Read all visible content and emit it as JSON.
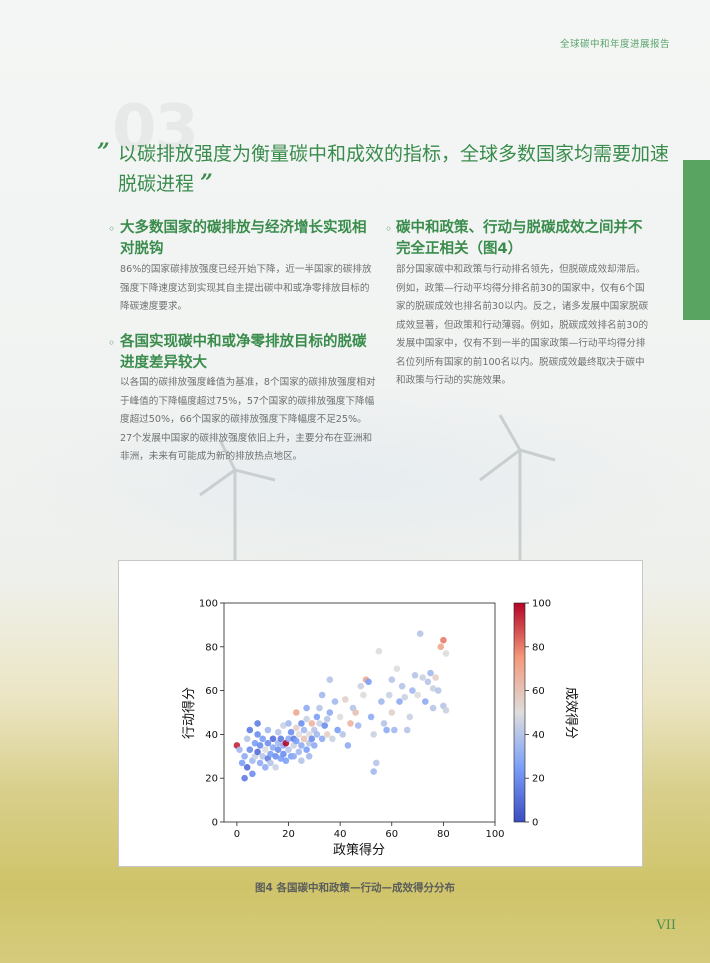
{
  "header": {
    "report_title": "全球碳中和年度进展报告"
  },
  "section": {
    "number": "03",
    "quote_open": "”",
    "quote_close": "”",
    "bullet": "◦",
    "headline": "以碳排放强度为衡量碳中和成效的指标，全球多数国家均需要加速脱碳进程"
  },
  "subsections": [
    {
      "title": "大多数国家的碳排放与经济增长实现相对脱钩",
      "body": "86%的国家碳排放强度已经开始下降，近一半国家的碳排放强度下降速度达到实现其自主提出碳中和或净零排放目标的降碳速度要求。"
    },
    {
      "title": "各国实现碳中和或净零排放目标的脱碳进度差异较大",
      "body": "以各国的碳排放强度峰值为基准，8个国家的碳排放强度相对于峰值的下降幅度超过75%，57个国家的碳排放强度下降幅度超过50%，66个国家的碳排放强度下降幅度不足25%。27个发展中国家的碳排放强度依旧上升，主要分布在亚洲和非洲，未来有可能成为新的排放热点地区。"
    },
    {
      "title": "碳中和政策、行动与脱碳成效之间并不完全正相关（图4）",
      "body": "部分国家碳中和政策与行动排名领先，但脱碳成效却滞后。例如，政策—行动平均得分排名前30的国家中，仅有6个国家的脱碳成效也排名前30以内。反之，诸多发展中国家脱碳成效显著，但政策和行动薄弱。例如，脱碳成效排名前30的发展中国家中，仅有不到一半的国家政策—行动平均得分排名位列所有国家的前100名以内。脱碳成效最终取决于碳中和政策与行动的实施效果。"
    }
  ],
  "chart_data": {
    "type": "scatter",
    "xlabel": "政策得分",
    "ylabel": "行动得分",
    "colorbar_label": "成效得分",
    "xlim": [
      -5,
      100
    ],
    "ylim": [
      0,
      100
    ],
    "xticks": [
      0,
      20,
      40,
      60,
      80,
      100
    ],
    "yticks": [
      0,
      20,
      40,
      60,
      80,
      100
    ],
    "colorbar_ticks": [
      0,
      20,
      40,
      60,
      80,
      100
    ],
    "colorbar_range": [
      0,
      100
    ],
    "colormap": "coolwarm",
    "points": [
      [
        0,
        35,
        95
      ],
      [
        1,
        33,
        35
      ],
      [
        2,
        27,
        25
      ],
      [
        3,
        20,
        15
      ],
      [
        3,
        30,
        30
      ],
      [
        4,
        25,
        10
      ],
      [
        4,
        38,
        40
      ],
      [
        5,
        33,
        20
      ],
      [
        5,
        42,
        15
      ],
      [
        6,
        28,
        35
      ],
      [
        6,
        22,
        20
      ],
      [
        7,
        36,
        25
      ],
      [
        7,
        30,
        45
      ],
      [
        8,
        40,
        20
      ],
      [
        8,
        32,
        10
      ],
      [
        8,
        45,
        15
      ],
      [
        9,
        27,
        30
      ],
      [
        9,
        35,
        20
      ],
      [
        10,
        30,
        40
      ],
      [
        10,
        38,
        25
      ],
      [
        11,
        33,
        50
      ],
      [
        11,
        25,
        30
      ],
      [
        12,
        29,
        15
      ],
      [
        12,
        36,
        20
      ],
      [
        12,
        42,
        35
      ],
      [
        13,
        31,
        25
      ],
      [
        13,
        27,
        40
      ],
      [
        14,
        34,
        30
      ],
      [
        14,
        38,
        10
      ],
      [
        15,
        30,
        20
      ],
      [
        15,
        25,
        45
      ],
      [
        16,
        36,
        35
      ],
      [
        16,
        33,
        20
      ],
      [
        16,
        41,
        40
      ],
      [
        17,
        29,
        25
      ],
      [
        17,
        38,
        15
      ],
      [
        18,
        35,
        30
      ],
      [
        18,
        31,
        20
      ],
      [
        18,
        44,
        45
      ],
      [
        19,
        28,
        25
      ],
      [
        19,
        36,
        100
      ],
      [
        20,
        33,
        40
      ],
      [
        20,
        38,
        30
      ],
      [
        20,
        45,
        35
      ],
      [
        21,
        30,
        25
      ],
      [
        21,
        41,
        20
      ],
      [
        22,
        35,
        45
      ],
      [
        22,
        30,
        30
      ],
      [
        22,
        38,
        15
      ],
      [
        23,
        43,
        55
      ],
      [
        23,
        37,
        25
      ],
      [
        23,
        50,
        70
      ],
      [
        24,
        32,
        35
      ],
      [
        24,
        40,
        50
      ],
      [
        25,
        35,
        30
      ],
      [
        25,
        45,
        20
      ],
      [
        25,
        28,
        40
      ],
      [
        26,
        38,
        60
      ],
      [
        26,
        42,
        35
      ],
      [
        27,
        33,
        25
      ],
      [
        27,
        47,
        45
      ],
      [
        27,
        52,
        30
      ],
      [
        28,
        36,
        40
      ],
      [
        28,
        40,
        50
      ],
      [
        28,
        30,
        35
      ],
      [
        29,
        45,
        65
      ],
      [
        29,
        38,
        20
      ],
      [
        30,
        42,
        40
      ],
      [
        30,
        35,
        30
      ],
      [
        31,
        48,
        25
      ],
      [
        31,
        40,
        35
      ],
      [
        32,
        52,
        40
      ],
      [
        32,
        45,
        45
      ],
      [
        33,
        38,
        30
      ],
      [
        33,
        58,
        35
      ],
      [
        34,
        44,
        20
      ],
      [
        35,
        47,
        40
      ],
      [
        35,
        40,
        55
      ],
      [
        36,
        50,
        30
      ],
      [
        36,
        65,
        40
      ],
      [
        37,
        38,
        45
      ],
      [
        38,
        55,
        35
      ],
      [
        39,
        42,
        25
      ],
      [
        40,
        48,
        50
      ],
      [
        41,
        40,
        40
      ],
      [
        42,
        56,
        55
      ],
      [
        43,
        35,
        30
      ],
      [
        44,
        45,
        65
      ],
      [
        45,
        52,
        40
      ],
      [
        46,
        50,
        60
      ],
      [
        47,
        44,
        35
      ],
      [
        48,
        62,
        45
      ],
      [
        49,
        58,
        50
      ],
      [
        50,
        65,
        70
      ],
      [
        51,
        64,
        25
      ],
      [
        52,
        48,
        30
      ],
      [
        53,
        40,
        45
      ],
      [
        53,
        23,
        35
      ],
      [
        54,
        27,
        40
      ],
      [
        55,
        78,
        50
      ],
      [
        56,
        55,
        35
      ],
      [
        57,
        45,
        40
      ],
      [
        58,
        42,
        30
      ],
      [
        59,
        58,
        45
      ],
      [
        60,
        50,
        55
      ],
      [
        60,
        65,
        40
      ],
      [
        61,
        42,
        35
      ],
      [
        62,
        70,
        50
      ],
      [
        63,
        55,
        30
      ],
      [
        64,
        62,
        40
      ],
      [
        65,
        57,
        45
      ],
      [
        66,
        42,
        40
      ],
      [
        67,
        48,
        45
      ],
      [
        68,
        60,
        35
      ],
      [
        69,
        67,
        40
      ],
      [
        70,
        58,
        50
      ],
      [
        71,
        86,
        40
      ],
      [
        72,
        66,
        45
      ],
      [
        73,
        55,
        30
      ],
      [
        74,
        64,
        40
      ],
      [
        75,
        68,
        35
      ],
      [
        76,
        61,
        45
      ],
      [
        76,
        52,
        40
      ],
      [
        77,
        66,
        55
      ],
      [
        78,
        60,
        40
      ],
      [
        79,
        80,
        70
      ],
      [
        80,
        83,
        80
      ],
      [
        80,
        53,
        40
      ],
      [
        81,
        77,
        50
      ],
      [
        81,
        51,
        45
      ]
    ]
  },
  "figure": {
    "caption": "图4 各国碳中和政策—行动—成效得分分布"
  },
  "footer": {
    "page_number": "VII"
  }
}
